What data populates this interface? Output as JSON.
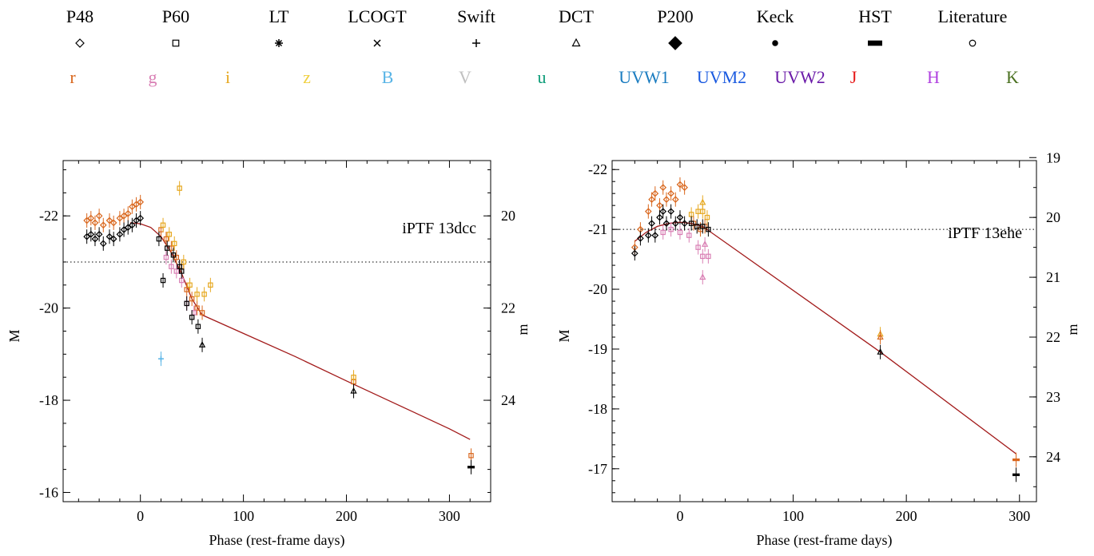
{
  "legend": {
    "telescopes": [
      {
        "name": "P48",
        "marker": "diamond-open"
      },
      {
        "name": "P60",
        "marker": "square-open"
      },
      {
        "name": "LT",
        "marker": "asterisk"
      },
      {
        "name": "LCOGT",
        "marker": "cross"
      },
      {
        "name": "Swift",
        "marker": "plus"
      },
      {
        "name": "DCT",
        "marker": "triangle-open"
      },
      {
        "name": "P200",
        "marker": "diamond-filled"
      },
      {
        "name": "Keck",
        "marker": "circle-filled"
      },
      {
        "name": "HST",
        "marker": "rect-filled"
      },
      {
        "name": "Literature",
        "marker": "circle-open"
      }
    ],
    "filters": [
      {
        "name": "r",
        "color": "#d9661c"
      },
      {
        "name": "g",
        "color": "#d97fb4"
      },
      {
        "name": "i",
        "color": "#e6a820"
      },
      {
        "name": "z",
        "color": "#f0d040"
      },
      {
        "name": "B",
        "color": "#58b4e6"
      },
      {
        "name": "V",
        "color": "#c0c0c0"
      },
      {
        "name": "u",
        "color": "#0c9c78"
      },
      {
        "name": "UVW1",
        "color": "#1a7cc0"
      },
      {
        "name": "UVM2",
        "color": "#1a5ae0"
      },
      {
        "name": "UVW2",
        "color": "#6a1aa8"
      },
      {
        "name": "J",
        "color": "#e61a1a"
      },
      {
        "name": "H",
        "color": "#b040e0"
      },
      {
        "name": "K",
        "color": "#4a7020"
      }
    ]
  },
  "chart_data": [
    {
      "type": "scatter",
      "label": "iPTF 13dcc",
      "xlabel": "Phase (rest-frame days)",
      "ylabel": "M",
      "ylabel_right": "m",
      "xlim": [
        -75,
        340
      ],
      "ylim": [
        -15.8,
        -23.2
      ],
      "xticks": [
        0,
        100,
        200,
        300
      ],
      "yticks": [
        -22,
        -20,
        -18,
        -16
      ],
      "yticks_right": [
        20,
        22,
        24
      ],
      "right_axis_offset": 42.0,
      "reference_line_M": -21.0,
      "model_curve": [
        [
          -10,
          -21.85
        ],
        [
          0,
          -21.83
        ],
        [
          10,
          -21.75
        ],
        [
          20,
          -21.55
        ],
        [
          30,
          -21.2
        ],
        [
          40,
          -20.75
        ],
        [
          50,
          -20.2
        ],
        [
          60,
          -19.85
        ],
        [
          100,
          -19.45
        ],
        [
          150,
          -18.95
        ],
        [
          200,
          -18.42
        ],
        [
          250,
          -17.9
        ],
        [
          300,
          -17.38
        ],
        [
          320,
          -17.15
        ]
      ],
      "series": [
        {
          "filter": "r",
          "color": "#d9661c",
          "marker": "diamond-open",
          "points": [
            [
              -52,
              -21.9
            ],
            [
              -48,
              -21.95
            ],
            [
              -44,
              -21.85
            ],
            [
              -40,
              -22.0
            ],
            [
              -36,
              -21.8
            ],
            [
              -30,
              -21.9
            ],
            [
              -26,
              -21.85
            ],
            [
              -20,
              -21.95
            ],
            [
              -16,
              -22.0
            ],
            [
              -12,
              -22.05
            ],
            [
              -8,
              -22.2
            ],
            [
              -4,
              -22.25
            ],
            [
              0,
              -22.3
            ]
          ]
        },
        {
          "filter": "r",
          "color": "#d9661c",
          "marker": "square-open",
          "points": [
            [
              20,
              -21.7
            ],
            [
              25,
              -21.5
            ],
            [
              30,
              -21.3
            ],
            [
              35,
              -21.1
            ],
            [
              40,
              -20.9
            ],
            [
              45,
              -20.4
            ],
            [
              50,
              -20.2
            ],
            [
              55,
              -20.0
            ],
            [
              60,
              -19.9
            ],
            [
              207,
              -18.4
            ],
            [
              321,
              -16.8
            ]
          ]
        },
        {
          "filter": "i",
          "color": "#e6a820",
          "marker": "square-open",
          "points": [
            [
              22,
              -21.8
            ],
            [
              28,
              -21.6
            ],
            [
              33,
              -21.4
            ],
            [
              38,
              -22.6
            ],
            [
              42,
              -21.0
            ],
            [
              48,
              -20.5
            ],
            [
              55,
              -20.3
            ],
            [
              62,
              -20.3
            ],
            [
              68,
              -20.5
            ],
            [
              207,
              -18.5
            ]
          ]
        },
        {
          "filter": "g",
          "color": "#d97fb4",
          "marker": "square-open",
          "points": [
            [
              25,
              -21.1
            ],
            [
              30,
              -20.9
            ],
            [
              35,
              -20.8
            ],
            [
              40,
              -20.6
            ],
            [
              45,
              -20.1
            ],
            [
              52,
              -19.9
            ]
          ]
        },
        {
          "filter": "UVW1",
          "color": "#58b4e6",
          "marker": "plus",
          "points": [
            [
              20,
              -18.9
            ]
          ]
        },
        {
          "filter": "black",
          "color": "#000000",
          "marker": "diamond-open",
          "points": [
            [
              -52,
              -21.55
            ],
            [
              -48,
              -21.6
            ],
            [
              -44,
              -21.5
            ],
            [
              -40,
              -21.6
            ],
            [
              -36,
              -21.4
            ],
            [
              -30,
              -21.55
            ],
            [
              -26,
              -21.5
            ],
            [
              -20,
              -21.6
            ],
            [
              -16,
              -21.7
            ],
            [
              -12,
              -21.75
            ],
            [
              -8,
              -21.8
            ],
            [
              -4,
              -21.9
            ],
            [
              0,
              -21.95
            ]
          ]
        },
        {
          "filter": "black",
          "color": "#000000",
          "marker": "square-open",
          "points": [
            [
              18,
              -21.5
            ],
            [
              22,
              -20.6
            ],
            [
              26,
              -21.3
            ],
            [
              32,
              -21.15
            ],
            [
              38,
              -20.9
            ],
            [
              40,
              -20.8
            ],
            [
              45,
              -20.1
            ],
            [
              50,
              -19.8
            ],
            [
              56,
              -19.6
            ]
          ]
        },
        {
          "filter": "black",
          "color": "#000000",
          "marker": "triangle-open",
          "points": [
            [
              60,
              -19.2
            ],
            [
              207,
              -18.2
            ]
          ]
        },
        {
          "filter": "black",
          "color": "#000000",
          "marker": "rect-filled",
          "points": [
            [
              321,
              -16.55
            ]
          ]
        }
      ]
    },
    {
      "type": "scatter",
      "label": "iPTF 13ehe",
      "xlabel": "Phase (rest-frame days)",
      "ylabel": "M",
      "ylabel_right": "m",
      "xlim": [
        -60,
        315
      ],
      "ylim": [
        -16.45,
        -22.15
      ],
      "xticks": [
        0,
        100,
        200,
        300
      ],
      "yticks": [
        -22,
        -21,
        -20,
        -19,
        -18,
        -17
      ],
      "yticks_right": [
        19,
        20,
        21,
        22,
        23,
        24
      ],
      "right_axis_offset": 41.2,
      "reference_line_M": -21.0,
      "model_curve": [
        [
          -40,
          -20.8
        ],
        [
          -30,
          -20.95
        ],
        [
          -20,
          -21.05
        ],
        [
          -10,
          -21.1
        ],
        [
          0,
          -21.12
        ],
        [
          10,
          -21.1
        ],
        [
          20,
          -21.05
        ],
        [
          177,
          -18.95
        ],
        [
          297,
          -17.25
        ]
      ],
      "series": [
        {
          "filter": "r",
          "color": "#d9661c",
          "marker": "diamond-open",
          "points": [
            [
              -40,
              -20.7
            ],
            [
              -35,
              -21.0
            ],
            [
              -28,
              -21.3
            ],
            [
              -25,
              -21.5
            ],
            [
              -22,
              -21.6
            ],
            [
              -18,
              -21.4
            ],
            [
              -15,
              -21.7
            ],
            [
              -12,
              -21.5
            ],
            [
              -8,
              -21.6
            ],
            [
              -4,
              -21.5
            ],
            [
              0,
              -21.75
            ],
            [
              4,
              -21.7
            ]
          ]
        },
        {
          "filter": "i",
          "color": "#e6a820",
          "marker": "square-open",
          "points": [
            [
              10,
              -21.25
            ],
            [
              16,
              -21.3
            ],
            [
              20,
              -21.3
            ],
            [
              24,
              -21.2
            ]
          ]
        },
        {
          "filter": "i",
          "color": "#e6a820",
          "marker": "triangle-open",
          "points": [
            [
              20,
              -21.45
            ],
            [
              177,
              -19.25
            ]
          ]
        },
        {
          "filter": "r",
          "color": "#d9661c",
          "marker": "square-open",
          "points": [
            [
              12,
              -21.1
            ],
            [
              18,
              -21.0
            ],
            [
              22,
              -21.05
            ]
          ]
        },
        {
          "filter": "g",
          "color": "#d97fb4",
          "marker": "square-open",
          "points": [
            [
              -15,
              -20.95
            ],
            [
              -8,
              -21.0
            ],
            [
              0,
              -20.95
            ],
            [
              8,
              -20.9
            ],
            [
              16,
              -20.7
            ],
            [
              20,
              -20.55
            ],
            [
              25,
              -20.55
            ]
          ]
        },
        {
          "filter": "g",
          "color": "#d97fb4",
          "marker": "triangle-open",
          "points": [
            [
              20,
              -20.2
            ],
            [
              22,
              -20.75
            ]
          ]
        },
        {
          "filter": "r",
          "color": "#d9661c",
          "marker": "triangle-open",
          "points": [
            [
              177,
              -19.2
            ]
          ]
        },
        {
          "filter": "r",
          "color": "#d9661c",
          "marker": "rect-filled",
          "points": [
            [
              297,
              -17.15
            ]
          ]
        },
        {
          "filter": "black",
          "color": "#000000",
          "marker": "diamond-open",
          "points": [
            [
              -40,
              -20.6
            ],
            [
              -35,
              -20.85
            ],
            [
              -28,
              -20.9
            ],
            [
              -25,
              -21.1
            ],
            [
              -22,
              -20.9
            ],
            [
              -18,
              -21.2
            ],
            [
              -15,
              -21.3
            ],
            [
              -12,
              -21.1
            ],
            [
              -8,
              -21.3
            ],
            [
              -4,
              -21.1
            ],
            [
              0,
              -21.2
            ],
            [
              4,
              -21.1
            ]
          ]
        },
        {
          "filter": "black",
          "color": "#000000",
          "marker": "square-open",
          "points": [
            [
              10,
              -21.1
            ],
            [
              15,
              -21.05
            ],
            [
              20,
              -21.05
            ],
            [
              25,
              -21.0
            ]
          ]
        },
        {
          "filter": "black",
          "color": "#000000",
          "marker": "triangle-open",
          "points": [
            [
              177,
              -18.95
            ]
          ]
        },
        {
          "filter": "black",
          "color": "#000000",
          "marker": "rect-filled",
          "points": [
            [
              297,
              -16.9
            ]
          ]
        }
      ]
    }
  ]
}
